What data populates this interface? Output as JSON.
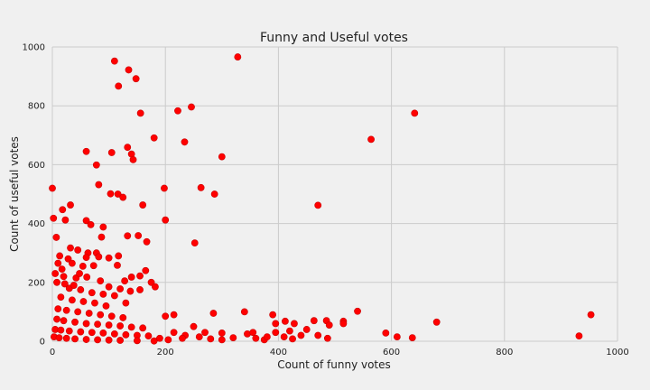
{
  "chart_data": {
    "type": "scatter",
    "title": "Funny and Useful votes",
    "xlabel": "Count of funny votes",
    "ylabel": "Count of useful votes",
    "xlim": [
      0,
      1000
    ],
    "ylim": [
      0,
      1000
    ],
    "xticks": [
      0,
      200,
      400,
      600,
      800,
      1000
    ],
    "yticks": [
      0,
      200,
      400,
      600,
      800,
      1000
    ],
    "grid": true,
    "marker_color": "#ff0000",
    "points": [
      [
        110,
        952
      ],
      [
        135,
        922
      ],
      [
        148,
        892
      ],
      [
        328,
        966
      ],
      [
        117,
        867
      ],
      [
        222,
        783
      ],
      [
        246,
        796
      ],
      [
        156,
        775
      ],
      [
        641,
        775
      ],
      [
        564,
        686
      ],
      [
        180,
        691
      ],
      [
        234,
        677
      ],
      [
        133,
        659
      ],
      [
        60,
        645
      ],
      [
        105,
        641
      ],
      [
        140,
        636
      ],
      [
        143,
        617
      ],
      [
        300,
        627
      ],
      [
        78,
        599
      ],
      [
        82,
        532
      ],
      [
        0,
        520
      ],
      [
        103,
        501
      ],
      [
        116,
        500
      ],
      [
        125,
        489
      ],
      [
        198,
        520
      ],
      [
        263,
        522
      ],
      [
        287,
        500
      ],
      [
        470,
        462
      ],
      [
        160,
        463
      ],
      [
        32,
        463
      ],
      [
        18,
        447
      ],
      [
        23,
        412
      ],
      [
        2,
        418
      ],
      [
        60,
        410
      ],
      [
        68,
        396
      ],
      [
        90,
        388
      ],
      [
        200,
        412
      ],
      [
        7,
        353
      ],
      [
        133,
        358
      ],
      [
        152,
        359
      ],
      [
        167,
        338
      ],
      [
        252,
        334
      ],
      [
        87,
        354
      ],
      [
        32,
        317
      ],
      [
        45,
        310
      ],
      [
        63,
        300
      ],
      [
        78,
        300
      ],
      [
        82,
        287
      ],
      [
        100,
        283
      ],
      [
        117,
        290
      ],
      [
        28,
        280
      ],
      [
        60,
        285
      ],
      [
        35,
        265
      ],
      [
        54,
        255
      ],
      [
        73,
        257
      ],
      [
        115,
        258
      ],
      [
        13,
        290
      ],
      [
        17,
        245
      ],
      [
        5,
        230
      ],
      [
        20,
        220
      ],
      [
        42,
        215
      ],
      [
        61,
        218
      ],
      [
        85,
        205
      ],
      [
        128,
        205
      ],
      [
        140,
        218
      ],
      [
        155,
        222
      ],
      [
        165,
        240
      ],
      [
        175,
        200
      ],
      [
        182,
        185
      ],
      [
        100,
        185
      ],
      [
        120,
        178
      ],
      [
        138,
        170
      ],
      [
        155,
        175
      ],
      [
        30,
        180
      ],
      [
        50,
        175
      ],
      [
        70,
        165
      ],
      [
        90,
        160
      ],
      [
        110,
        155
      ],
      [
        15,
        150
      ],
      [
        35,
        140
      ],
      [
        55,
        135
      ],
      [
        75,
        130
      ],
      [
        95,
        120
      ],
      [
        130,
        130
      ],
      [
        10,
        110
      ],
      [
        25,
        105
      ],
      [
        45,
        100
      ],
      [
        65,
        95
      ],
      [
        85,
        90
      ],
      [
        105,
        85
      ],
      [
        125,
        80
      ],
      [
        8,
        75
      ],
      [
        20,
        70
      ],
      [
        40,
        65
      ],
      [
        60,
        60
      ],
      [
        80,
        58
      ],
      [
        100,
        55
      ],
      [
        120,
        52
      ],
      [
        140,
        48
      ],
      [
        160,
        45
      ],
      [
        5,
        40
      ],
      [
        15,
        38
      ],
      [
        30,
        35
      ],
      [
        50,
        32
      ],
      [
        70,
        30
      ],
      [
        90,
        28
      ],
      [
        110,
        25
      ],
      [
        130,
        22
      ],
      [
        150,
        20
      ],
      [
        170,
        18
      ],
      [
        3,
        15
      ],
      [
        12,
        12
      ],
      [
        25,
        10
      ],
      [
        40,
        8
      ],
      [
        60,
        6
      ],
      [
        80,
        5
      ],
      [
        100,
        4
      ],
      [
        120,
        3
      ],
      [
        150,
        2
      ],
      [
        180,
        1
      ],
      [
        8,
        200
      ],
      [
        22,
        195
      ],
      [
        38,
        190
      ],
      [
        48,
        230
      ],
      [
        10,
        265
      ],
      [
        190,
        10
      ],
      [
        205,
        5
      ],
      [
        215,
        30
      ],
      [
        235,
        20
      ],
      [
        260,
        15
      ],
      [
        280,
        8
      ],
      [
        300,
        5
      ],
      [
        320,
        12
      ],
      [
        345,
        25
      ],
      [
        360,
        10
      ],
      [
        375,
        5
      ],
      [
        395,
        30
      ],
      [
        410,
        15
      ],
      [
        425,
        8
      ],
      [
        440,
        20
      ],
      [
        200,
        85
      ],
      [
        215,
        90
      ],
      [
        285,
        95
      ],
      [
        340,
        100
      ],
      [
        390,
        90
      ],
      [
        395,
        60
      ],
      [
        412,
        68
      ],
      [
        428,
        60
      ],
      [
        463,
        70
      ],
      [
        485,
        70
      ],
      [
        490,
        55
      ],
      [
        515,
        68
      ],
      [
        515,
        60
      ],
      [
        540,
        102
      ],
      [
        470,
        20
      ],
      [
        487,
        10
      ],
      [
        590,
        28
      ],
      [
        610,
        15
      ],
      [
        637,
        12
      ],
      [
        680,
        65
      ],
      [
        932,
        18
      ],
      [
        953,
        90
      ],
      [
        250,
        50
      ],
      [
        270,
        30
      ],
      [
        230,
        10
      ],
      [
        300,
        28
      ],
      [
        355,
        30
      ],
      [
        380,
        15
      ],
      [
        420,
        35
      ],
      [
        450,
        40
      ]
    ]
  }
}
